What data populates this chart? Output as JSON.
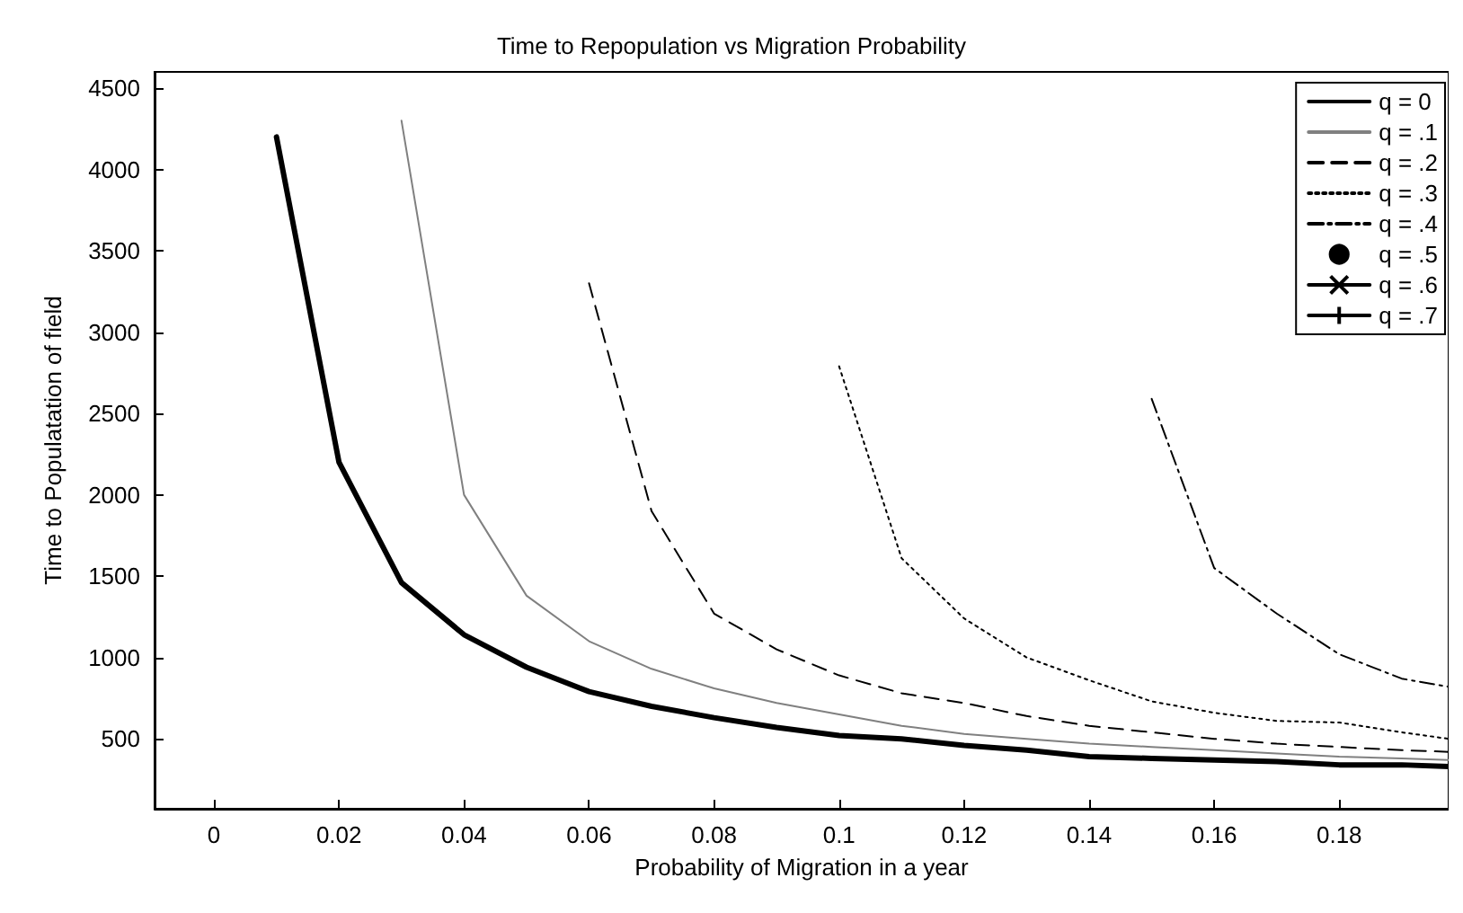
{
  "chart_data": {
    "type": "line",
    "title": "Time to Repopulation vs Migration Probability",
    "xlabel": "Probability of Migration in a year",
    "ylabel": "Time to Populatation of field",
    "xlim": [
      -0.0095,
      0.1975
    ],
    "xticks": [
      0,
      0.02,
      0.04,
      0.06,
      0.08,
      0.1,
      0.12,
      0.14,
      0.16,
      0.18
    ],
    "ylim": [
      70,
      4600
    ],
    "yticks": [
      500,
      1000,
      1500,
      2000,
      2500,
      3000,
      3500,
      4000,
      4500
    ],
    "legend": "top right",
    "series": [
      {
        "name": "q = 0",
        "color": "#000000",
        "line_style": "solid",
        "marker": "none",
        "x": [
          0.01,
          0.02,
          0.03,
          0.04,
          0.05,
          0.06,
          0.07,
          0.08,
          0.09,
          0.1,
          0.11,
          0.12,
          0.13,
          0.14,
          0.15,
          0.16,
          0.17,
          0.18,
          0.19,
          0.1975
        ],
        "values": [
          4200,
          2200,
          1460,
          1140,
          940,
          790,
          700,
          630,
          570,
          520,
          500,
          460,
          430,
          390,
          380,
          370,
          360,
          340,
          340,
          330
        ]
      },
      {
        "name": "q = .1",
        "color": "#808080",
        "line_style": "solid",
        "marker": "none",
        "x": [
          0.03,
          0.04,
          0.05,
          0.06,
          0.07,
          0.08,
          0.09,
          0.1,
          0.11,
          0.12,
          0.13,
          0.14,
          0.15,
          0.16,
          0.17,
          0.18,
          0.19,
          0.1975
        ],
        "values": [
          4300,
          2000,
          1380,
          1100,
          930,
          810,
          720,
          650,
          580,
          530,
          500,
          470,
          450,
          430,
          410,
          390,
          380,
          370
        ]
      },
      {
        "name": "q = .2",
        "color": "#000000",
        "line_style": "dashed",
        "marker": "none",
        "x": [
          0.06,
          0.07,
          0.08,
          0.09,
          0.1,
          0.11,
          0.12,
          0.13,
          0.14,
          0.15,
          0.16,
          0.17,
          0.18,
          0.19,
          0.1975
        ],
        "values": [
          3300,
          1900,
          1270,
          1050,
          890,
          780,
          720,
          640,
          580,
          540,
          500,
          470,
          450,
          430,
          420
        ]
      },
      {
        "name": "q = .3",
        "color": "#000000",
        "line_style": "dotted",
        "marker": "none",
        "x": [
          0.1,
          0.11,
          0.12,
          0.13,
          0.14,
          0.15,
          0.16,
          0.17,
          0.18,
          0.19,
          0.1975
        ],
        "values": [
          2790,
          1610,
          1240,
          1000,
          860,
          730,
          660,
          610,
          600,
          540,
          500
        ]
      },
      {
        "name": "q = .4",
        "color": "#000000",
        "line_style": "dashdot",
        "marker": "none",
        "x": [
          0.15,
          0.16,
          0.17,
          0.18,
          0.19,
          0.1975
        ],
        "values": [
          2590,
          1550,
          1270,
          1020,
          870,
          820
        ]
      },
      {
        "name": "q = .5",
        "color": "#000000",
        "line_style": "none",
        "marker": "circle"
      },
      {
        "name": "q = .6",
        "color": "#000000",
        "line_style": "solid",
        "marker": "cross"
      },
      {
        "name": "q = .7",
        "color": "#000000",
        "line_style": "solid",
        "marker": "star"
      }
    ]
  }
}
